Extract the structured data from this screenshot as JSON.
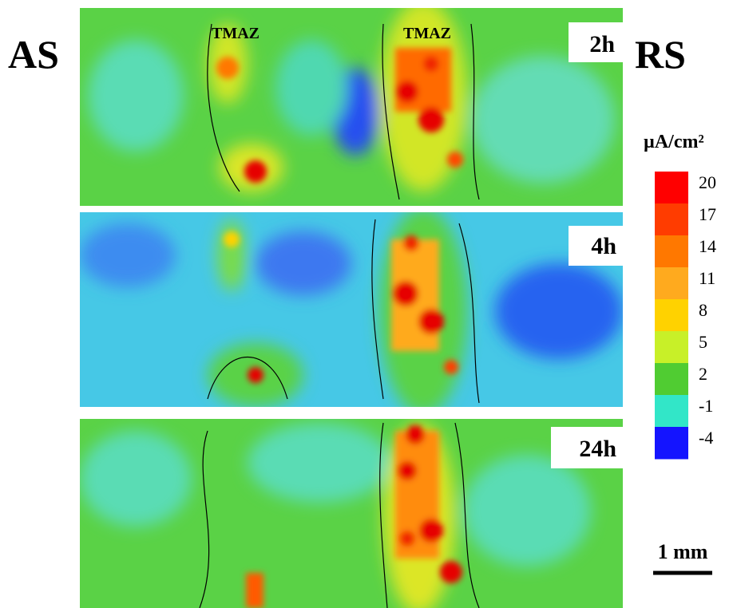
{
  "side_labels": {
    "left": "AS",
    "right": "RS"
  },
  "zone_labels": [
    "TMAZ",
    "TMAZ"
  ],
  "panels": [
    {
      "label": "2h"
    },
    {
      "label": "4h"
    },
    {
      "label": "24h"
    }
  ],
  "colorbar": {
    "unit": "µA/cm²",
    "ticks": [
      20,
      17,
      14,
      11,
      8,
      5,
      2,
      -1,
      -4
    ],
    "colors": [
      "#ff0000",
      "#ff3c00",
      "#ff7800",
      "#ffaa1e",
      "#ffd200",
      "#c8f028",
      "#50cc32",
      "#32e6c8",
      "#1414ff"
    ]
  },
  "scale_bar": "1 mm"
}
